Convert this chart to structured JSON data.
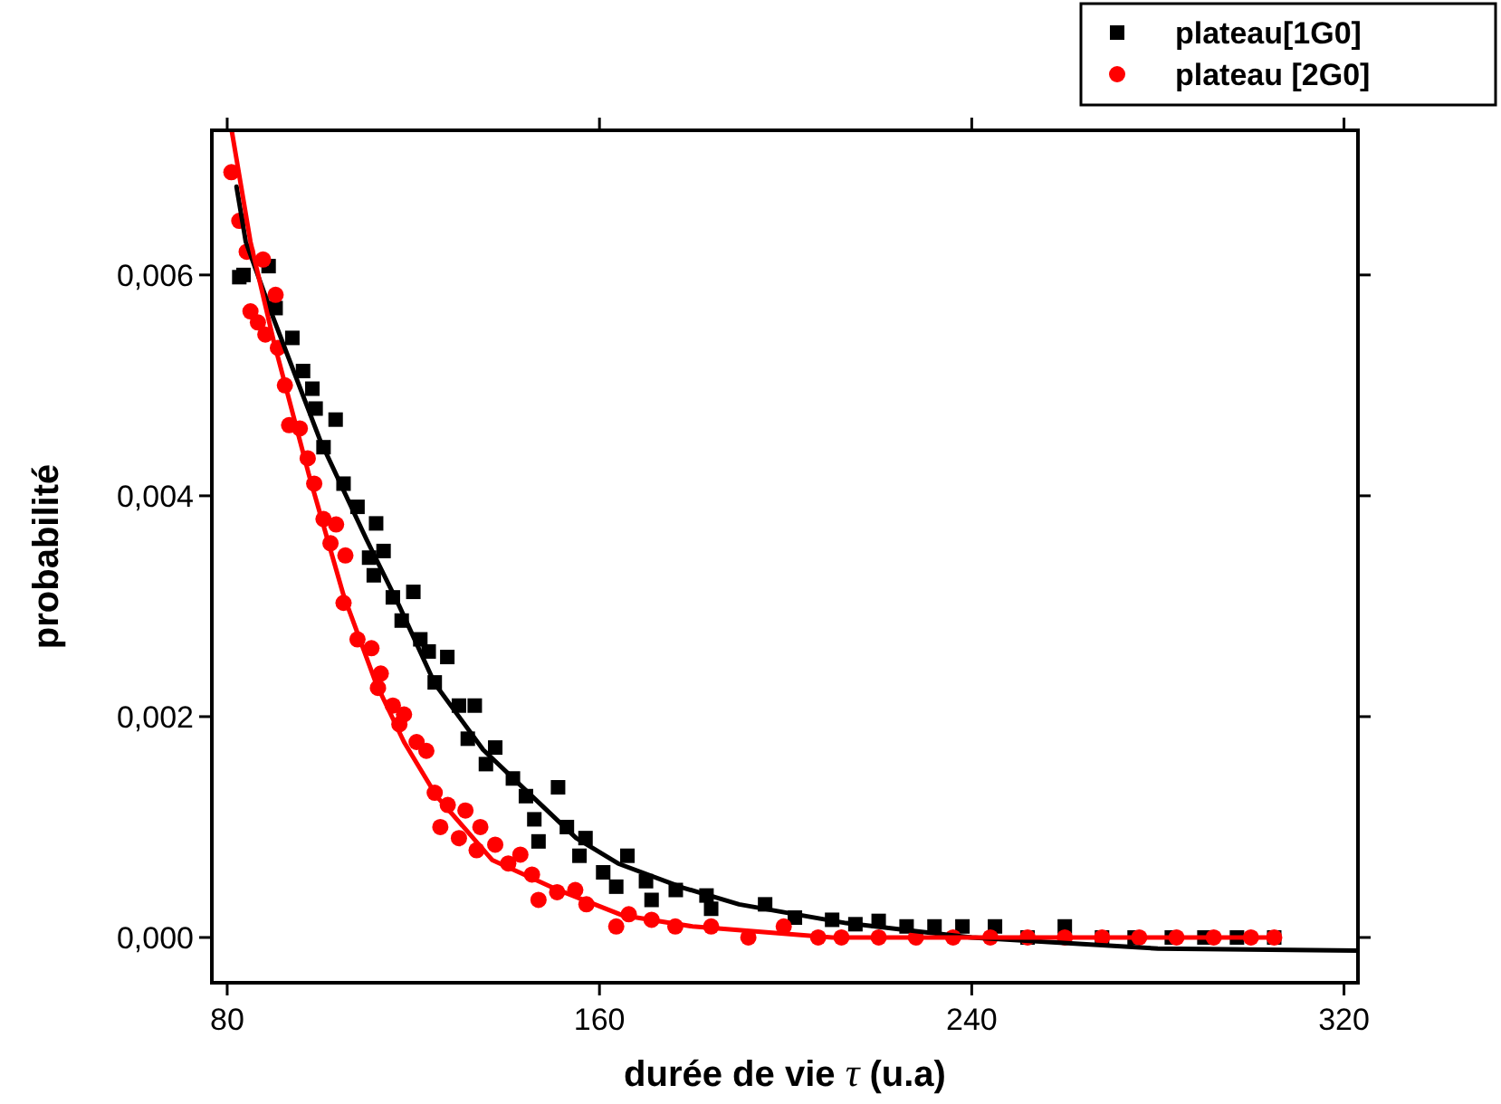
{
  "chart_data": {
    "type": "scatter",
    "xlabel": "durée de vie τ (u.a)",
    "ylabel": "probabilité",
    "xlim": [
      76.7,
      323
    ],
    "ylim": [
      -0.00041,
      0.00731
    ],
    "xticks": [
      80,
      160,
      240,
      320
    ],
    "yticks": [
      {
        "value": 0,
        "label": "0,000"
      },
      {
        "value": 0.002,
        "label": "0,002"
      },
      {
        "value": 0.004,
        "label": "0,004"
      },
      {
        "value": 0.006,
        "label": "0,006"
      }
    ],
    "legend": "top right",
    "grid": false,
    "series": [
      {
        "name": "plateau[1G0]",
        "marker": "square",
        "color": "#000000",
        "x": [
          82.6,
          83.5,
          88.9,
          90.4,
          94,
          96.3,
          98.3,
          99,
          103.3,
          100.7,
          105,
          108,
          112,
          113.6,
          110.5,
          111.5,
          115.6,
          120,
          117.5,
          121.5,
          123.3,
          127.3,
          124.6,
          129.8,
          133.2,
          131.7,
          137.6,
          135.6,
          141.4,
          144.2,
          151.1,
          146,
          153,
          146.9,
          157,
          155.7,
          160.8,
          166,
          163.6,
          170,
          176.4,
          171.2,
          183,
          184,
          195.6,
          202,
          210,
          215,
          220,
          226,
          232,
          238,
          245,
          252,
          260,
          268,
          275,
          283,
          290,
          297,
          305
        ],
        "values": [
          0.00598,
          0.006,
          0.00608,
          0.0057,
          0.00543,
          0.00513,
          0.00497,
          0.00479,
          0.00469,
          0.00444,
          0.00411,
          0.0039,
          0.00375,
          0.0035,
          0.00344,
          0.00328,
          0.00308,
          0.00313,
          0.00287,
          0.0027,
          0.00259,
          0.00254,
          0.00231,
          0.0021,
          0.0021,
          0.0018,
          0.00172,
          0.00157,
          0.00144,
          0.00128,
          0.00136,
          0.00107,
          0.001,
          0.00087,
          0.0009,
          0.00074,
          0.00059,
          0.00074,
          0.00046,
          0.00051,
          0.00043,
          0.00034,
          0.00038,
          0.00026,
          0.0003,
          0.00018,
          0.00016,
          0.00012,
          0.00015,
          0.0001,
          0.0001,
          0.0001,
          0.0001,
          0,
          0.0001,
          0,
          0,
          0,
          0,
          0,
          0
        ]
      },
      {
        "name": "plateau [2G0]",
        "marker": "circle",
        "color": "#ff0000",
        "x": [
          80.9,
          82.6,
          84.2,
          87.7,
          85,
          86.6,
          88.2,
          90.4,
          90.9,
          92.4,
          93.3,
          95.6,
          97.3,
          98.7,
          100.7,
          103.4,
          102.2,
          105.4,
          105,
          108,
          111,
          113,
          112.4,
          115.6,
          118,
          117,
          120.7,
          122.8,
          124.6,
          127.4,
          131.2,
          125.8,
          129.8,
          134.4,
          133.6,
          137.6,
          140.4,
          143,
          145.5,
          146.9,
          150.9,
          154.8,
          157.2,
          163.6,
          166.3,
          171.2,
          176.3,
          184,
          192,
          199.6,
          207,
          212,
          220,
          228,
          236,
          244,
          252,
          260,
          268,
          276,
          284,
          292,
          300,
          305
        ],
        "values": [
          0.00693,
          0.00649,
          0.00621,
          0.00614,
          0.00567,
          0.00557,
          0.00546,
          0.00582,
          0.00534,
          0.005,
          0.00464,
          0.00461,
          0.00434,
          0.00411,
          0.00379,
          0.00374,
          0.00357,
          0.00346,
          0.00303,
          0.0027,
          0.00262,
          0.00239,
          0.00226,
          0.0021,
          0.00202,
          0.00193,
          0.00177,
          0.00169,
          0.00131,
          0.0012,
          0.00115,
          0.001,
          0.0009,
          0.001,
          0.00079,
          0.00084,
          0.00067,
          0.00075,
          0.00057,
          0.00034,
          0.00041,
          0.00043,
          0.0003,
          0.0001,
          0.00021,
          0.00016,
          0.0001,
          0.0001,
          0,
          0.0001,
          0,
          0,
          0,
          0,
          0,
          0,
          0,
          0,
          0,
          0,
          0,
          0,
          0,
          0
        ]
      },
      {
        "type": "line",
        "color": "#000000",
        "x": [
          82,
          84,
          90,
          100,
          110,
          117,
          124.6,
          135,
          145,
          155,
          164,
          178,
          190,
          213,
          240,
          280,
          323
        ],
        "values": [
          0.0068,
          0.0063,
          0.0056,
          0.0045,
          0.0036,
          0.003,
          0.0023,
          0.0017,
          0.0013,
          0.0009,
          0.00067,
          0.00045,
          0.0003,
          0.00013,
          0,
          -0.0001,
          -0.00012
        ]
      },
      {
        "type": "line",
        "color": "#ff0000",
        "x": [
          81,
          85,
          90,
          97.5,
          105,
          112,
          118,
          125,
          137,
          150,
          165,
          180,
          210,
          305
        ],
        "values": [
          0.0073,
          0.0063,
          0.0054,
          0.0042,
          0.0031,
          0.0023,
          0.00177,
          0.00128,
          0.0007,
          0.00045,
          0.0002,
          0.0001,
          0,
          0
        ]
      }
    ]
  }
}
